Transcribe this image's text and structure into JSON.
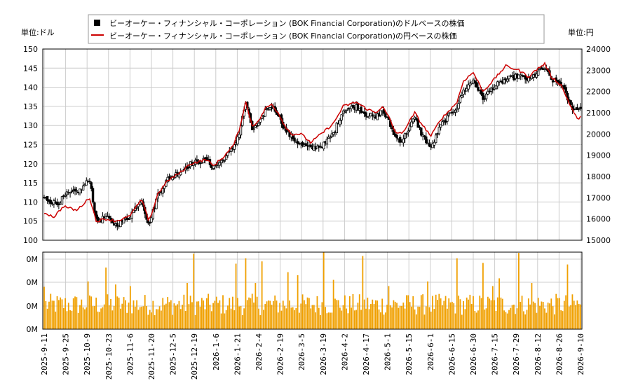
{
  "chart_data": {
    "type": "candlestick",
    "legend": {
      "placement": "top-center",
      "items": [
        {
          "label": "ビーオーケー・フィナンシャル・コーポレーション (BOK Financial Corporation)のドルベースの株価",
          "color": "#000000",
          "marker": "square"
        },
        {
          "label": "ビーオーケー・フィナンシャル・コーポレーション (BOK Financial Corporation)の円ベースの株価",
          "color": "#cc0000",
          "marker": "line"
        }
      ]
    },
    "left_unit_label": "単位:ドル",
    "right_unit_label": "単位:円",
    "price_axis_left": {
      "min": 100,
      "max": 150,
      "ticks": [
        "100",
        "105",
        "110",
        "115",
        "120",
        "125",
        "130",
        "135",
        "140",
        "145",
        "150"
      ]
    },
    "price_axis_right": {
      "min": 15000,
      "max": 24000,
      "ticks": [
        "15000",
        "16000",
        "17000",
        "18000",
        "19000",
        "20000",
        "21000",
        "22000",
        "23000",
        "24000"
      ]
    },
    "volume_axis": {
      "ticks": [
        "0M",
        "0M",
        "0M",
        "0M"
      ]
    },
    "x_tick_labels": [
      "2025-9-11",
      "2025-9-25",
      "2025-10-9",
      "2025-10-23",
      "2025-11-6",
      "2025-11-20",
      "2025-12-5",
      "2025-12-19",
      "2026-1-6",
      "2026-1-21",
      "2026-2-4",
      "2026-2-19",
      "2026-3-5",
      "2026-3-19",
      "2026-4-2",
      "2026-4-17",
      "2026-5-1",
      "2026-5-15",
      "2026-6-1",
      "2026-6-15",
      "2026-6-30",
      "2026-7-15",
      "2026-7-29",
      "2026-8-12",
      "2026-8-26",
      "2026-9-10"
    ],
    "grid": true,
    "colors": {
      "candle": "#000000",
      "yen_line": "#cc0000",
      "volume": "#f0a000",
      "grid": "#cccccc"
    },
    "usd_close_knots": [
      [
        0,
        111
      ],
      [
        8,
        109.5
      ],
      [
        14,
        112
      ],
      [
        22,
        113
      ],
      [
        28,
        116
      ],
      [
        32,
        105
      ],
      [
        38,
        106
      ],
      [
        44,
        104
      ],
      [
        52,
        106
      ],
      [
        60,
        111
      ],
      [
        64,
        104
      ],
      [
        66,
        106
      ],
      [
        70,
        112
      ],
      [
        76,
        116
      ],
      [
        84,
        118
      ],
      [
        90,
        120
      ],
      [
        100,
        121
      ],
      [
        104,
        119
      ],
      [
        110,
        121
      ],
      [
        116,
        124
      ],
      [
        120,
        128
      ],
      [
        124,
        136
      ],
      [
        128,
        129
      ],
      [
        132,
        130
      ],
      [
        136,
        134
      ],
      [
        140,
        135
      ],
      [
        144,
        133
      ],
      [
        148,
        129
      ],
      [
        152,
        127
      ],
      [
        158,
        125
      ],
      [
        164,
        124
      ],
      [
        172,
        125
      ],
      [
        178,
        128
      ],
      [
        184,
        134
      ],
      [
        192,
        135
      ],
      [
        198,
        133
      ],
      [
        204,
        132
      ],
      [
        208,
        134
      ],
      [
        212,
        131
      ],
      [
        216,
        127
      ],
      [
        220,
        126
      ],
      [
        228,
        132
      ],
      [
        232,
        128
      ],
      [
        238,
        124
      ],
      [
        244,
        130
      ],
      [
        248,
        132
      ],
      [
        254,
        135
      ],
      [
        258,
        139
      ],
      [
        264,
        142
      ],
      [
        270,
        137
      ],
      [
        276,
        140
      ],
      [
        284,
        142
      ],
      [
        292,
        143
      ],
      [
        298,
        142
      ],
      [
        304,
        144
      ],
      [
        308,
        145
      ],
      [
        312,
        142
      ],
      [
        318,
        141
      ],
      [
        324,
        135
      ],
      [
        328,
        134
      ],
      [
        330,
        135
      ]
    ],
    "jpy_close_knots": [
      [
        0,
        16300
      ],
      [
        6,
        16100
      ],
      [
        12,
        16600
      ],
      [
        20,
        16400
      ],
      [
        28,
        17000
      ],
      [
        32,
        15900
      ],
      [
        38,
        16000
      ],
      [
        44,
        15900
      ],
      [
        52,
        16100
      ],
      [
        60,
        16900
      ],
      [
        64,
        16000
      ],
      [
        66,
        16200
      ],
      [
        70,
        17200
      ],
      [
        76,
        17800
      ],
      [
        84,
        18200
      ],
      [
        90,
        18600
      ],
      [
        100,
        18800
      ],
      [
        104,
        18500
      ],
      [
        110,
        18900
      ],
      [
        116,
        19400
      ],
      [
        120,
        20200
      ],
      [
        124,
        21500
      ],
      [
        128,
        20400
      ],
      [
        132,
        20600
      ],
      [
        136,
        21200
      ],
      [
        140,
        21400
      ],
      [
        144,
        21000
      ],
      [
        148,
        20400
      ],
      [
        152,
        20000
      ],
      [
        158,
        20000
      ],
      [
        164,
        19600
      ],
      [
        172,
        20100
      ],
      [
        178,
        20500
      ],
      [
        184,
        21300
      ],
      [
        192,
        21500
      ],
      [
        198,
        21200
      ],
      [
        204,
        21000
      ],
      [
        208,
        21300
      ],
      [
        212,
        20800
      ],
      [
        216,
        20100
      ],
      [
        220,
        20000
      ],
      [
        228,
        21000
      ],
      [
        232,
        20500
      ],
      [
        238,
        19900
      ],
      [
        244,
        20700
      ],
      [
        248,
        21000
      ],
      [
        254,
        21500
      ],
      [
        258,
        22500
      ],
      [
        264,
        22900
      ],
      [
        270,
        22000
      ],
      [
        276,
        22500
      ],
      [
        284,
        23200
      ],
      [
        292,
        23000
      ],
      [
        298,
        22700
      ],
      [
        304,
        23100
      ],
      [
        308,
        23300
      ],
      [
        312,
        22700
      ],
      [
        318,
        22300
      ],
      [
        324,
        21300
      ],
      [
        328,
        20700
      ],
      [
        330,
        20800
      ]
    ],
    "volume_spike_days": [
      [
        0,
        0.55
      ],
      [
        27,
        0.62
      ],
      [
        38,
        0.8
      ],
      [
        44,
        0.58
      ],
      [
        53,
        0.56
      ],
      [
        88,
        0.6
      ],
      [
        92,
        0.98
      ],
      [
        118,
        0.85
      ],
      [
        124,
        0.92
      ],
      [
        130,
        0.6
      ],
      [
        134,
        0.88
      ],
      [
        150,
        0.74
      ],
      [
        156,
        0.7
      ],
      [
        172,
        1.0
      ],
      [
        178,
        0.64
      ],
      [
        196,
        0.95
      ],
      [
        212,
        0.56
      ],
      [
        236,
        0.62
      ],
      [
        254,
        0.92
      ],
      [
        270,
        0.86
      ],
      [
        276,
        0.56
      ],
      [
        280,
        0.66
      ],
      [
        292,
        0.99
      ],
      [
        300,
        0.6
      ],
      [
        322,
        0.84
      ]
    ]
  }
}
